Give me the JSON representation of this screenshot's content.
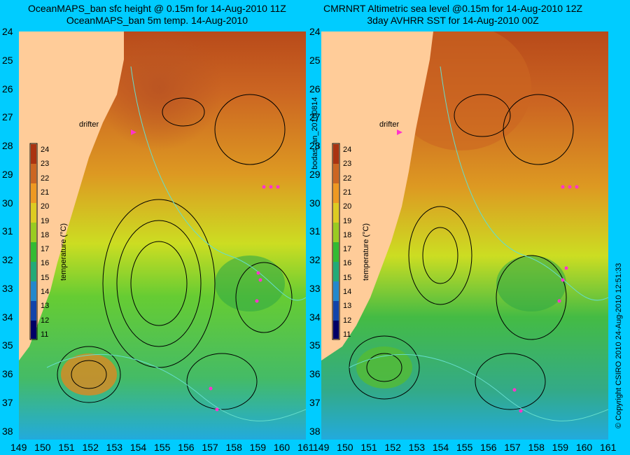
{
  "titles": {
    "left": [
      "OceanMAPS_ban sfc height @ 0.15m for 14-Aug-2010 11Z",
      "OceanMAPS_ban 5m temp. 14-Aug-2010"
    ],
    "right": [
      "CMRNRT Altimetric sea level  @0.15m  for 14-Aug-2010 12Z",
      "3day AVHRR SST for 14-Aug-2010 00Z"
    ]
  },
  "y_axis": [
    "24",
    "25",
    "26",
    "27",
    "28",
    "29",
    "30",
    "31",
    "32",
    "33",
    "34",
    "35",
    "36",
    "37",
    "38"
  ],
  "x_axis": [
    "149",
    "150",
    "151",
    "152",
    "153",
    "154",
    "155",
    "156",
    "157",
    "158",
    "159",
    "160",
    "161"
  ],
  "colorbar": {
    "label": "temperature (°C)",
    "ticks": [
      "24",
      "23",
      "22",
      "21",
      "20",
      "19",
      "18",
      "17",
      "16",
      "15",
      "14",
      "13",
      "12",
      "11"
    ]
  },
  "drifter_label": "drifter",
  "side_labels": {
    "middle": "bodas_an_20100814",
    "right": "© Copyright CSIRO 2010   24-Aug-2010 12:51:33"
  },
  "colors": {
    "background": "#00ccff",
    "land": "#ffcc99",
    "drifter": "#ff33cc",
    "contour": "#000000",
    "front": "#66ddcc"
  }
}
